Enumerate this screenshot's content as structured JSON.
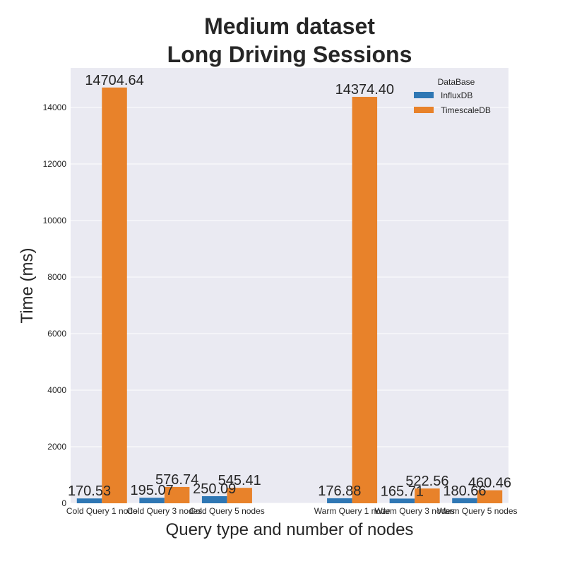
{
  "chart_data": {
    "type": "bar",
    "title_lines": [
      "Medium dataset",
      "Long Driving Sessions"
    ],
    "xlabel": "Query type and number of nodes",
    "ylabel": "Time (ms)",
    "ylim": [
      0,
      15400
    ],
    "yticks": [
      0,
      2000,
      4000,
      6000,
      8000,
      10000,
      12000,
      14000
    ],
    "grid": true,
    "legend": {
      "title": "DataBase",
      "placement": "top-right"
    },
    "categories": [
      "Cold Query 1 node",
      "Cold Query 3 nodes",
      "Cold Query 5 nodes",
      "",
      "Warm Query 1 node",
      "Warm Query 3 nodes",
      "Warm Query 5 nodes"
    ],
    "series": [
      {
        "name": "InfluxDB",
        "color": "#2f77b4",
        "values": [
          170.53,
          195.07,
          250.09,
          null,
          176.88,
          165.71,
          180.66
        ],
        "labels": [
          "170.53",
          "195.07",
          "250.09",
          "",
          "176.88",
          "165.71",
          "180.66"
        ]
      },
      {
        "name": "TimescaleDB",
        "color": "#e8822a",
        "values": [
          14704.64,
          576.74,
          545.41,
          null,
          14374.4,
          522.56,
          460.46
        ],
        "labels": [
          "14704.64",
          "576.74",
          "545.41",
          "",
          "14374.40",
          "522.56",
          "460.46"
        ]
      }
    ],
    "colors": {
      "plot_background": "#eaeaf2",
      "grid": "#ffffff"
    }
  }
}
